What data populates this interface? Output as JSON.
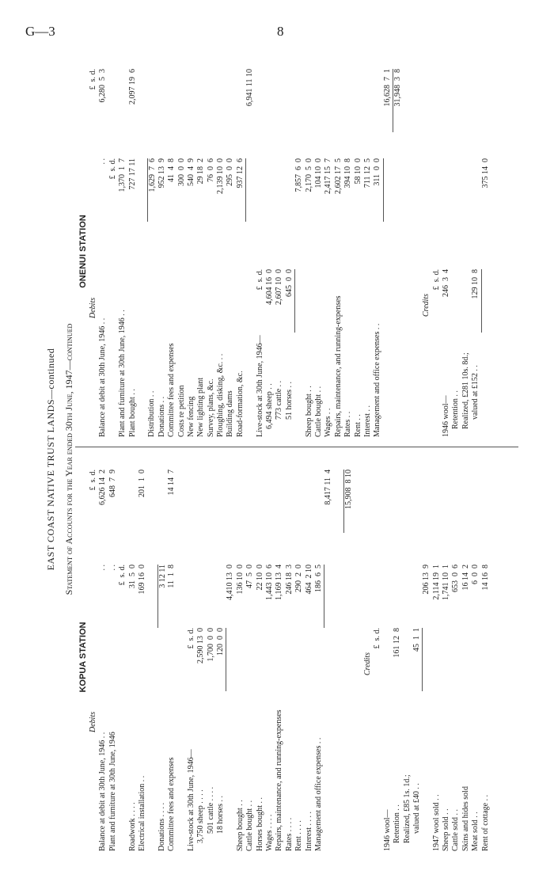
{
  "page": {
    "series_code": "G—3",
    "page_number": "8"
  },
  "title": "EAST COAST NATIVE TRUST LANDS—continued",
  "subtitle": "Statement of Accounts for the Year ended 30th June, 1947—continued",
  "stations": [
    {
      "name": "KOPUA STATION",
      "rows": [
        {
          "label": "Debits",
          "heading": true,
          "c3": "£  s. d."
        },
        {
          "label": "Balance at debit at 30th June, 1946  . .",
          "c2": ". .",
          "c3": "6,626 14  2"
        },
        {
          "label": "Plant and furniture at 30th June, 1946",
          "c2": ". .",
          "c3": "648  7  9"
        },
        {
          "label": "",
          "c2": "£  s. d."
        },
        {
          "label": "Roadwork  . .  . .",
          "c2": "31  5  0"
        },
        {
          "label": "Electrical installation  . .",
          "c2": "169 16  0",
          "c3": "201  1  0"
        },
        {
          "label": ""
        },
        {
          "label": "Donations  . .  . .",
          "c2": "3 12 11",
          "rule": "c2"
        },
        {
          "label": "Committee fees and expenses",
          "c2": "11  1  8",
          "c3": "14 14  7"
        },
        {
          "label": ""
        },
        {
          "label": "Live-stock at 30th June, 1946—",
          "c1": "£  s. d."
        },
        {
          "label": "3,750 sheep  . .  . .",
          "indent": 1,
          "c1": "2,590 13  0"
        },
        {
          "label": "501 cattle  . .  . .",
          "indent": 2,
          "c1": "1,700  0  0"
        },
        {
          "label": "18 horses  . .",
          "indent": 2,
          "c1": "120  0  0"
        },
        {
          "label": "",
          "c2": "4,410 13  0",
          "rule": "c1"
        },
        {
          "label": "Sheep bought  . .",
          "c2": "136 10  0"
        },
        {
          "label": "Cattle bought . .",
          "c2": "47  5  0"
        },
        {
          "label": "Horses bought  . .",
          "c2": "22 10  0"
        },
        {
          "label": "Wages  . .  . .",
          "c2": "1,443 10  6"
        },
        {
          "label": "Repairs, maintenance, and running-expenses",
          "c2": "1,169 13  4"
        },
        {
          "label": "Rates  . .  . .",
          "c2": "246 18  3"
        },
        {
          "label": "Rent  . .  . .",
          "c2": "290  2  0"
        },
        {
          "label": "Interest  . .  . .",
          "c2": "464  2 10"
        },
        {
          "label": "Management and office expenses . .",
          "c2": "186  6  5"
        },
        {
          "label": "",
          "c3": "8,417 11  4",
          "rule": "c2"
        },
        {
          "label": ""
        },
        {
          "label": "",
          "c3": "15,908  8 10",
          "rule": "c3"
        },
        {
          "label": ""
        },
        {
          "label": "Credits",
          "heading": true,
          "c1": "",
          "credits_col": true
        },
        {
          "label": "",
          "c1": "£  s. d."
        },
        {
          "label": "1946 wool—"
        },
        {
          "label": "Retention  . .",
          "indent": 1,
          "c1": "161 12  8"
        },
        {
          "label": "Realized, £85 1s. 1d.;",
          "indent": 1
        },
        {
          "label": "valued at £40  . .",
          "indent": 2,
          "c1": "45  1  1"
        },
        {
          "label": "",
          "c2": "206 13  9",
          "rule": "c1"
        },
        {
          "label": "1947 wool sold  . .",
          "c2": "2,114 19  1"
        },
        {
          "label": "Sheep sold  . .",
          "c2": "1,741 10  1"
        },
        {
          "label": "Cattle sold  . .",
          "c2": "653  0  6"
        },
        {
          "label": "Skins and hides sold",
          "c2": "16 14  2"
        },
        {
          "label": "Meat sold  . .",
          "c2": "6  0  0"
        },
        {
          "label": "Rent of cottage  . .",
          "c2": "14 16  8"
        }
      ]
    },
    {
      "name": "ONENUI STATION",
      "rows": [
        {
          "label": "Debits",
          "heading": true,
          "c3": "£  s. d."
        },
        {
          "label": "Balance at debit at 30th June, 1946  . .",
          "c2": ". .",
          "c3": "6,280  5  3"
        },
        {
          "label": "",
          "c2": "£  s. d."
        },
        {
          "label": "Plant and furniture at 30th June, 1946  . .",
          "c2": "1,370  1  7"
        },
        {
          "label": "Plant bought  . .",
          "c2": "727 17 11",
          "c3": "2,097 19  6"
        },
        {
          "label": ""
        },
        {
          "label": "Distribution  . .",
          "c2": "1,629  7  6",
          "rule": "c2"
        },
        {
          "label": "Donations  . .",
          "c2": "952 13  9"
        },
        {
          "label": "Committee fees and expenses",
          "c2": "41  4  8"
        },
        {
          "label": "Costs re petition",
          "c2": "300  0  0"
        },
        {
          "label": "New fencing",
          "c2": "540  4  9"
        },
        {
          "label": "New lighting plant",
          "c2": "29 18  2"
        },
        {
          "label": "Survey, plans, &c.",
          "c2": "76  0  6"
        },
        {
          "label": "Ploughing, disking, &c. . .",
          "c2": "2,139 10  0"
        },
        {
          "label": "Building dams",
          "c2": "295  0  0"
        },
        {
          "label": "Road-formation, &c.",
          "c2": "937 12  6"
        },
        {
          "label": "",
          "c3": "6,941 11 10",
          "rule": "c2"
        },
        {
          "label": "Live-stock at 30th June, 1946—",
          "c1": "£  s. d."
        },
        {
          "label": "6,494 sheep  . .",
          "indent": 1,
          "c1": "4,604 16  0"
        },
        {
          "label": "773 cattle  . .",
          "indent": 2,
          "c1": "2,607 10  0"
        },
        {
          "label": "51 horses  . .",
          "indent": 2,
          "c1": "645  0  0"
        },
        {
          "label": "",
          "c2": "7,857  6  0",
          "rule": "c1"
        },
        {
          "label": "Sheep bought  . .",
          "c2": "2,170  5  0"
        },
        {
          "label": "Cattle bought  . .",
          "c2": "104 10  0"
        },
        {
          "label": "Wages  . .",
          "c2": "2,417 15  7"
        },
        {
          "label": "Repairs, maintenance, and running-expenses",
          "c2": "2,602 17  5"
        },
        {
          "label": "Rates  . .",
          "c2": "394 10  8"
        },
        {
          "label": "Rent . .",
          "c2": "58 10  0"
        },
        {
          "label": "Interest  . .",
          "c2": "711 12  5"
        },
        {
          "label": "Management and office expenses  . .",
          "c2": "311  0  0"
        },
        {
          "label": "",
          "c3": "16,628  7  1",
          "rule": "c2"
        },
        {
          "label": "",
          "c3": "31,948  3  8",
          "rule": "c3"
        },
        {
          "label": ""
        },
        {
          "label": ""
        },
        {
          "label": "Credits",
          "heading": true,
          "credits_col": true
        },
        {
          "label": "",
          "c1": "£  s. d."
        },
        {
          "label": "1946 wool—",
          "c1": "246  3  4"
        },
        {
          "label": "Retention  . .",
          "indent": 1
        },
        {
          "label": "Realized, £281 10s. 8d.;",
          "indent": 1
        },
        {
          "label": "valued at £152  . .",
          "indent": 2,
          "c1": "129 10  8"
        },
        {
          "label": "",
          "c2": "375 14  0",
          "rule": "c1"
        }
      ]
    }
  ]
}
